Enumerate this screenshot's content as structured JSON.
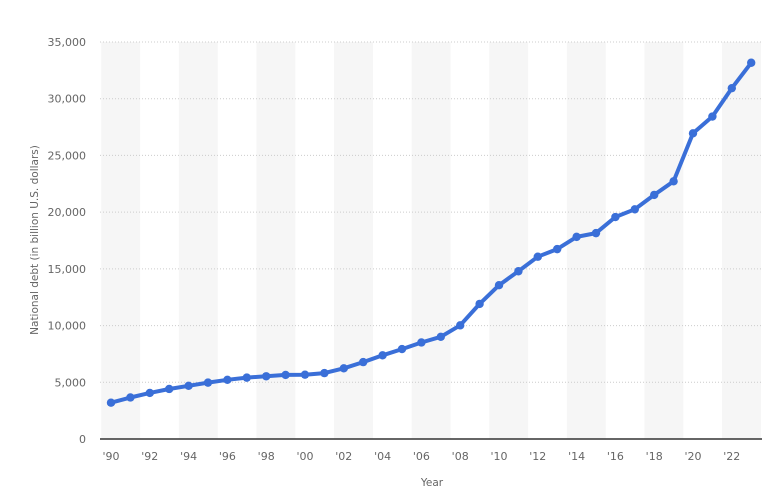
{
  "chart_data": {
    "type": "line",
    "title": "",
    "xlabel": "Year",
    "ylabel": "National debt (in billion U.S. dollars)",
    "ylim": [
      0,
      35000
    ],
    "yticks": [
      0,
      5000,
      10000,
      15000,
      20000,
      25000,
      30000,
      35000
    ],
    "ytick_labels": [
      "0",
      "5,000",
      "10,000",
      "15,000",
      "20,000",
      "25,000",
      "30,000",
      "35,000"
    ],
    "xtick_labels": [
      "'90",
      "'92",
      "'94",
      "'96",
      "'98",
      "'00",
      "'02",
      "'04",
      "'06",
      "'08",
      "'10",
      "'12",
      "'14",
      "'16",
      "'18",
      "'20",
      "'22"
    ],
    "grid": true,
    "legend": null,
    "x": [
      1990,
      1991,
      1992,
      1993,
      1994,
      1995,
      1996,
      1997,
      1998,
      1999,
      2000,
      2001,
      2002,
      2003,
      2004,
      2005,
      2006,
      2007,
      2008,
      2009,
      2010,
      2011,
      2012,
      2013,
      2014,
      2015,
      2016,
      2017,
      2018,
      2019,
      2020,
      2021,
      2022,
      2023
    ],
    "series": [
      {
        "name": "National debt",
        "color": "#3a6fd8",
        "values": [
          3200,
          3660,
          4060,
          4410,
          4690,
          4970,
          5220,
          5410,
          5530,
          5650,
          5670,
          5810,
          6230,
          6780,
          7380,
          7930,
          8510,
          9010,
          10020,
          11910,
          13560,
          14790,
          16070,
          16740,
          17820,
          18150,
          19570,
          20250,
          21520,
          22720,
          26950,
          28430,
          30930,
          33170
        ]
      }
    ]
  },
  "colors": {
    "line": "#3a6fd8",
    "band": "#f6f6f6",
    "grid": "#cccccc",
    "axis": "#333333",
    "text": "#666666"
  }
}
